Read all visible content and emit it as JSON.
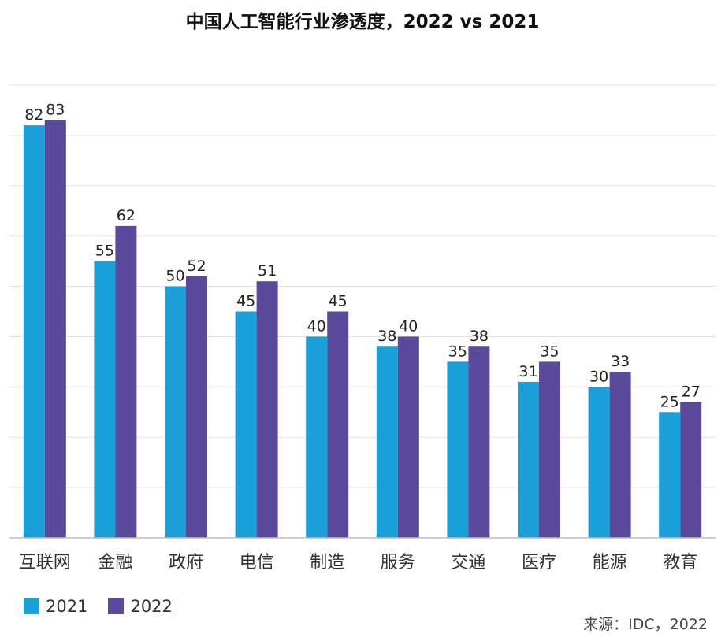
{
  "chart_data": {
    "type": "bar",
    "title": "中国人工智能行业渗透度，2022 vs 2021",
    "categories": [
      "互联网",
      "金融",
      "政府",
      "电信",
      "制造",
      "服务",
      "交通",
      "医疗",
      "能源",
      "教育"
    ],
    "series": [
      {
        "name": "2021",
        "color": "#1B9FD9",
        "values": [
          82,
          55,
          50,
          45,
          40,
          38,
          35,
          31,
          30,
          25
        ]
      },
      {
        "name": "2022",
        "color": "#5B4A9C",
        "values": [
          83,
          62,
          52,
          51,
          45,
          40,
          38,
          35,
          33,
          27
        ]
      }
    ],
    "ylim": [
      0,
      90
    ],
    "grid": true,
    "legend": "bottom-left",
    "source": "来源：IDC，2022"
  }
}
